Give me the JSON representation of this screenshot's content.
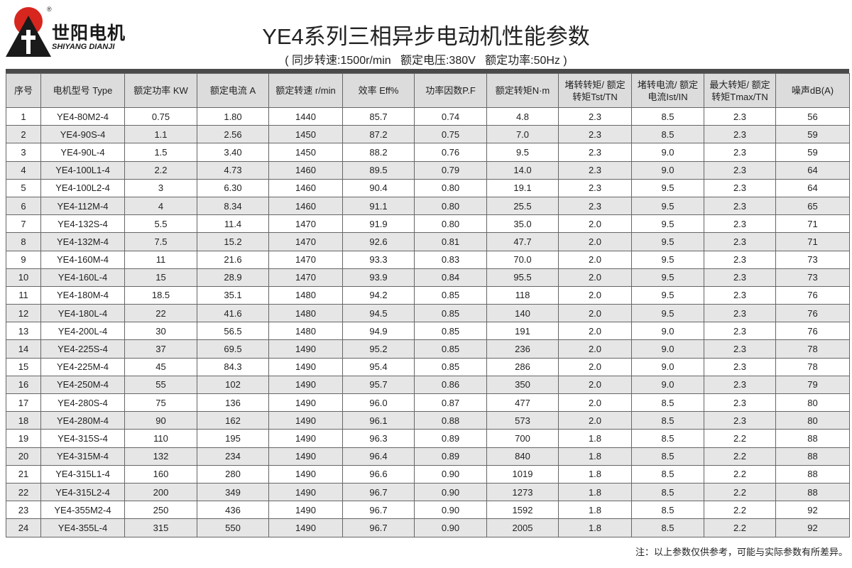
{
  "logo": {
    "name": "世阳电机",
    "pinyin": "SHIYANG DIANJI",
    "mark": "®"
  },
  "header": {
    "title": "YE4系列三相异步电动机性能参数",
    "subtitle": "( 同步转速:1500r/min   额定电压:380V   额定功率:50Hz )"
  },
  "table": {
    "columns": [
      "序号",
      "电机型号 Type",
      "额定功率 KW",
      "额定电流 A",
      "额定转速 r/min",
      "效率 Eff%",
      "功率因数P.F",
      "额定转矩N·m",
      "堵转转矩/ 额定转矩Tst/TN",
      "堵转电流/ 额定电流Ist/IN",
      "最大转矩/ 额定转矩Tmax/TN",
      "噪声dB(A)"
    ],
    "rows": [
      [
        "1",
        "YE4-80M2-4",
        "0.75",
        "1.80",
        "1440",
        "85.7",
        "0.74",
        "4.8",
        "2.3",
        "8.5",
        "2.3",
        "56"
      ],
      [
        "2",
        "YE4-90S-4",
        "1.1",
        "2.56",
        "1450",
        "87.2",
        "0.75",
        "7.0",
        "2.3",
        "8.5",
        "2.3",
        "59"
      ],
      [
        "3",
        "YE4-90L-4",
        "1.5",
        "3.40",
        "1450",
        "88.2",
        "0.76",
        "9.5",
        "2.3",
        "9.0",
        "2.3",
        "59"
      ],
      [
        "4",
        "YE4-100L1-4",
        "2.2",
        "4.73",
        "1460",
        "89.5",
        "0.79",
        "14.0",
        "2.3",
        "9.0",
        "2.3",
        "64"
      ],
      [
        "5",
        "YE4-100L2-4",
        "3",
        "6.30",
        "1460",
        "90.4",
        "0.80",
        "19.1",
        "2.3",
        "9.5",
        "2.3",
        "64"
      ],
      [
        "6",
        "YE4-112M-4",
        "4",
        "8.34",
        "1460",
        "91.1",
        "0.80",
        "25.5",
        "2.3",
        "9.5",
        "2.3",
        "65"
      ],
      [
        "7",
        "YE4-132S-4",
        "5.5",
        "11.4",
        "1470",
        "91.9",
        "0.80",
        "35.0",
        "2.0",
        "9.5",
        "2.3",
        "71"
      ],
      [
        "8",
        "YE4-132M-4",
        "7.5",
        "15.2",
        "1470",
        "92.6",
        "0.81",
        "47.7",
        "2.0",
        "9.5",
        "2.3",
        "71"
      ],
      [
        "9",
        "YE4-160M-4",
        "11",
        "21.6",
        "1470",
        "93.3",
        "0.83",
        "70.0",
        "2.0",
        "9.5",
        "2.3",
        "73"
      ],
      [
        "10",
        "YE4-160L-4",
        "15",
        "28.9",
        "1470",
        "93.9",
        "0.84",
        "95.5",
        "2.0",
        "9.5",
        "2.3",
        "73"
      ],
      [
        "11",
        "YE4-180M-4",
        "18.5",
        "35.1",
        "1480",
        "94.2",
        "0.85",
        "118",
        "2.0",
        "9.5",
        "2.3",
        "76"
      ],
      [
        "12",
        "YE4-180L-4",
        "22",
        "41.6",
        "1480",
        "94.5",
        "0.85",
        "140",
        "2.0",
        "9.5",
        "2.3",
        "76"
      ],
      [
        "13",
        "YE4-200L-4",
        "30",
        "56.5",
        "1480",
        "94.9",
        "0.85",
        "191",
        "2.0",
        "9.0",
        "2.3",
        "76"
      ],
      [
        "14",
        "YE4-225S-4",
        "37",
        "69.5",
        "1490",
        "95.2",
        "0.85",
        "236",
        "2.0",
        "9.0",
        "2.3",
        "78"
      ],
      [
        "15",
        "YE4-225M-4",
        "45",
        "84.3",
        "1490",
        "95.4",
        "0.85",
        "286",
        "2.0",
        "9.0",
        "2.3",
        "78"
      ],
      [
        "16",
        "YE4-250M-4",
        "55",
        "102",
        "1490",
        "95.7",
        "0.86",
        "350",
        "2.0",
        "9.0",
        "2.3",
        "79"
      ],
      [
        "17",
        "YE4-280S-4",
        "75",
        "136",
        "1490",
        "96.0",
        "0.87",
        "477",
        "2.0",
        "8.5",
        "2.3",
        "80"
      ],
      [
        "18",
        "YE4-280M-4",
        "90",
        "162",
        "1490",
        "96.1",
        "0.88",
        "573",
        "2.0",
        "8.5",
        "2.3",
        "80"
      ],
      [
        "19",
        "YE4-315S-4",
        "110",
        "195",
        "1490",
        "96.3",
        "0.89",
        "700",
        "1.8",
        "8.5",
        "2.2",
        "88"
      ],
      [
        "20",
        "YE4-315M-4",
        "132",
        "234",
        "1490",
        "96.4",
        "0.89",
        "840",
        "1.8",
        "8.5",
        "2.2",
        "88"
      ],
      [
        "21",
        "YE4-315L1-4",
        "160",
        "280",
        "1490",
        "96.6",
        "0.90",
        "1019",
        "1.8",
        "8.5",
        "2.2",
        "88"
      ],
      [
        "22",
        "YE4-315L2-4",
        "200",
        "349",
        "1490",
        "96.7",
        "0.90",
        "1273",
        "1.8",
        "8.5",
        "2.2",
        "88"
      ],
      [
        "23",
        "YE4-355M2-4",
        "250",
        "436",
        "1490",
        "96.7",
        "0.90",
        "1592",
        "1.8",
        "8.5",
        "2.2",
        "92"
      ],
      [
        "24",
        "YE4-355L-4",
        "315",
        "550",
        "1490",
        "96.7",
        "0.90",
        "2005",
        "1.8",
        "8.5",
        "2.2",
        "92"
      ]
    ]
  },
  "footer": {
    "note": "注：以上参数仅供参考，可能与实际参数有所差异。"
  }
}
